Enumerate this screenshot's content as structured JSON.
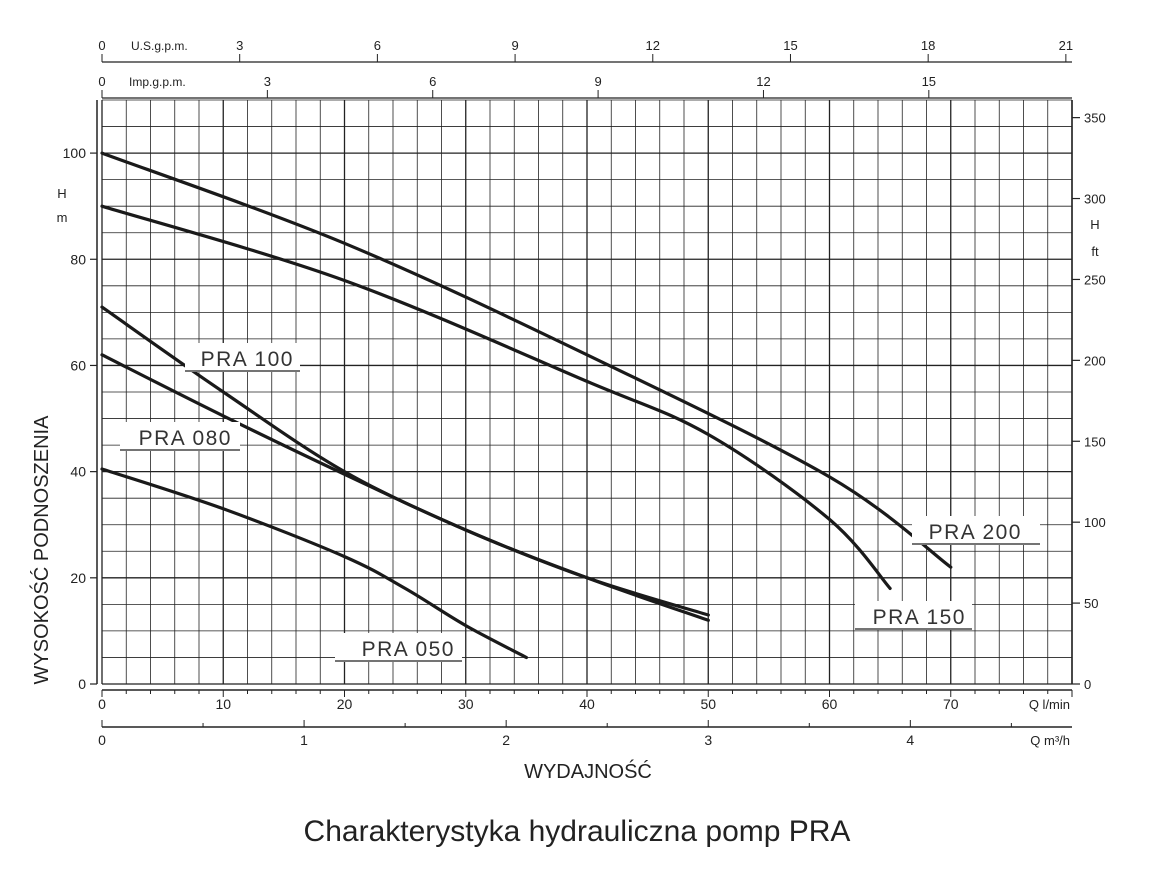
{
  "caption": "Charakterystyka hydrauliczna pomp PRA",
  "chart_data": {
    "type": "line",
    "title": "Charakterystyka hydrauliczna pomp PRA",
    "xlabel": "WYDAJNOŚĆ",
    "ylabel": "WYSOKOŚĆ PODNOSZENIA",
    "grid": true,
    "x_axis_lmin": {
      "unit": "Q l/min",
      "range": [
        0,
        80
      ],
      "ticks": [
        0,
        10,
        20,
        30,
        40,
        50,
        60,
        70
      ]
    },
    "x_axis_m3h": {
      "unit": "Q m³/h",
      "ticks": [
        0,
        1,
        2,
        3,
        4
      ]
    },
    "top_axis_us": {
      "unit": "U.S.g.p.m.",
      "ticks": [
        0,
        3,
        6,
        9,
        12,
        15,
        18,
        21
      ]
    },
    "top_axis_imp": {
      "unit": "Imp.g.p.m.",
      "ticks": [
        0,
        3,
        6,
        9,
        12,
        15
      ]
    },
    "y_axis_m": {
      "unit_line1": "H",
      "unit_line2": "m",
      "range": [
        0,
        110
      ],
      "ticks": [
        0,
        20,
        40,
        60,
        80,
        100
      ]
    },
    "y_axis_ft": {
      "unit_line1": "H",
      "unit_line2": "ft",
      "ticks": [
        0,
        50,
        100,
        150,
        200,
        250,
        300,
        350
      ]
    },
    "series": [
      {
        "name": "PRA 050",
        "points": [
          [
            0,
            40.5
          ],
          [
            10,
            33
          ],
          [
            20,
            24
          ],
          [
            25,
            18
          ],
          [
            30,
            11
          ],
          [
            35,
            5
          ]
        ]
      },
      {
        "name": "PRA 080",
        "points": [
          [
            0,
            62
          ],
          [
            10,
            50.5
          ],
          [
            20,
            39.5
          ],
          [
            30,
            29
          ],
          [
            40,
            20
          ],
          [
            50,
            13
          ]
        ]
      },
      {
        "name": "PRA 100",
        "points": [
          [
            0,
            71
          ],
          [
            10,
            55
          ],
          [
            20,
            40
          ],
          [
            30,
            29
          ],
          [
            40,
            20
          ],
          [
            50,
            12
          ]
        ]
      },
      {
        "name": "PRA 150",
        "points": [
          [
            0,
            90
          ],
          [
            20,
            76
          ],
          [
            40,
            57
          ],
          [
            50,
            47
          ],
          [
            60,
            31
          ],
          [
            65,
            18
          ]
        ]
      },
      {
        "name": "PRA 200",
        "points": [
          [
            0,
            100
          ],
          [
            20,
            83
          ],
          [
            40,
            62
          ],
          [
            60,
            39
          ],
          [
            70,
            22
          ]
        ]
      }
    ]
  }
}
